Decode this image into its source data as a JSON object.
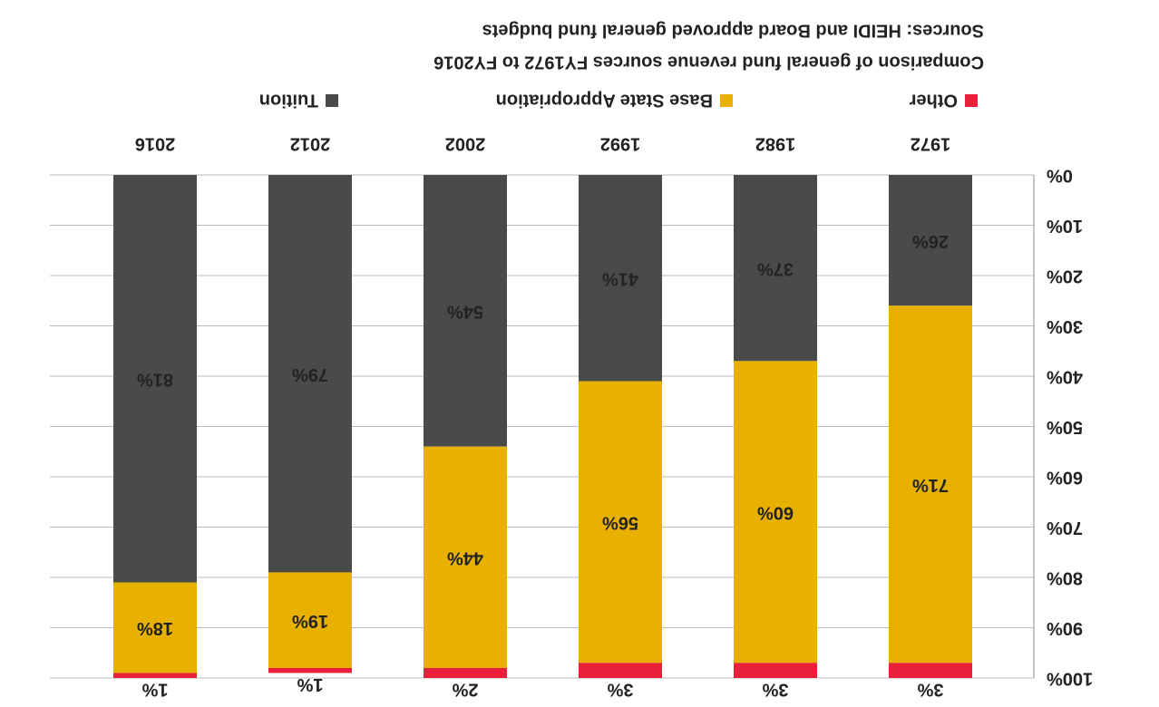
{
  "chart_data": {
    "type": "stacked_bar",
    "title": "Comparison of general fund revenue sources FY1972 to FY2016",
    "subtitle": "Sources: HEIDI and Board approved general fund budgets",
    "categories": [
      "1972",
      "1982",
      "1992",
      "2002",
      "2012",
      "2016"
    ],
    "series": [
      {
        "name": "Other",
        "color": "#e8203a",
        "values": [
          3,
          3,
          3,
          2,
          1,
          1
        ],
        "value_labels": [
          "3%",
          "3%",
          "3%",
          "2%",
          "1%",
          "1%"
        ]
      },
      {
        "name": "Base State Appropriation",
        "color": "#e8b100",
        "values": [
          71,
          60,
          56,
          44,
          19,
          18
        ],
        "value_labels": [
          "71%",
          "60%",
          "56%",
          "44%",
          "19%",
          "18%"
        ]
      },
      {
        "name": "Tuition",
        "color": "#4a4a4a",
        "values": [
          26,
          37,
          41,
          54,
          79,
          81
        ],
        "value_labels": [
          "26%",
          "37%",
          "41%",
          "54%",
          "79%",
          "81%"
        ]
      }
    ],
    "stack_order": [
      "Tuition",
      "Base State Appropriation",
      "Other"
    ],
    "ylim": [
      0,
      100
    ],
    "yticks": [
      {
        "value": 0,
        "label": "0%"
      },
      {
        "value": 10,
        "label": "10%"
      },
      {
        "value": 20,
        "label": "20%"
      },
      {
        "value": 30,
        "label": "30%"
      },
      {
        "value": 40,
        "label": "40%"
      },
      {
        "value": 50,
        "label": "50%"
      },
      {
        "value": 60,
        "label": "60%"
      },
      {
        "value": 70,
        "label": "70%"
      },
      {
        "value": 80,
        "label": "80%"
      },
      {
        "value": 90,
        "label": "90%"
      },
      {
        "value": 100,
        "label": "100%"
      }
    ],
    "grid": true,
    "rotated_180": true
  }
}
